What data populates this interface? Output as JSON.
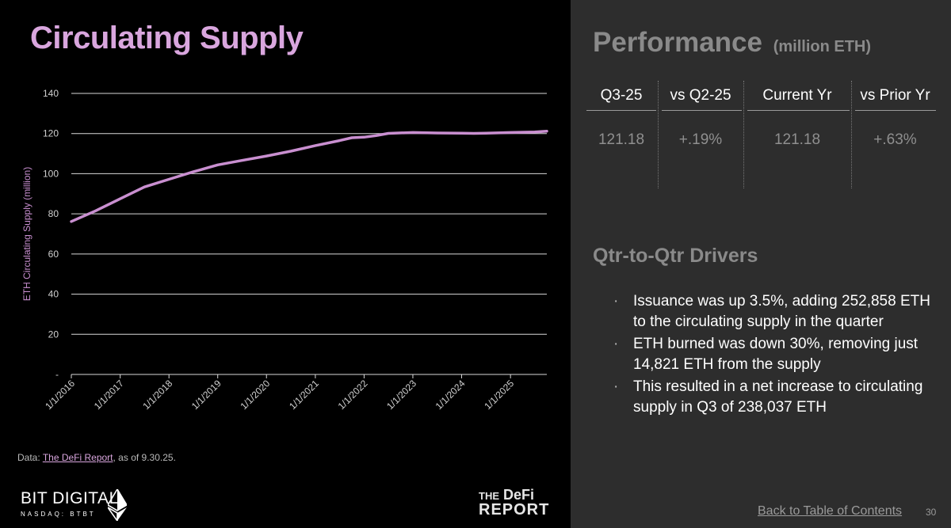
{
  "left": {
    "title": "Circulating Supply",
    "source": {
      "prefix": "Data: ",
      "link": "The DeFi Report",
      "suffix": ", as of 9.30.25."
    },
    "brand": {
      "name": "BIT DIGITAL",
      "sub": "NASDAQ: BTBT",
      "icon": "ethereum-diamond-icon"
    },
    "partner_logo": {
      "top_small": "THE",
      "top": "DeFi",
      "bottom": "REPORT"
    }
  },
  "chart_data": {
    "type": "line",
    "title": "",
    "xlabel": "",
    "ylabel": "ETH Circulating Supply (million)",
    "ylim": [
      0,
      140
    ],
    "yticks": [
      0,
      20,
      40,
      60,
      80,
      100,
      120,
      140
    ],
    "ytick_labels": [
      "-",
      "20",
      "40",
      "60",
      "80",
      "100",
      "120",
      "140"
    ],
    "x_start": "2016-01-01",
    "x_end": "2025-09-30",
    "xtick_labels": [
      "1/1/2016",
      "1/1/2017",
      "1/1/2018",
      "1/1/2019",
      "1/1/2020",
      "1/1/2021",
      "1/1/2022",
      "1/1/2023",
      "1/1/2024",
      "1/1/2025"
    ],
    "grid": true,
    "color": "#c98fd0",
    "series": [
      {
        "name": "",
        "x": [
          "2016-01-01",
          "2016-07-01",
          "2017-01-01",
          "2017-07-01",
          "2018-01-01",
          "2018-07-01",
          "2019-01-01",
          "2019-07-01",
          "2020-01-01",
          "2020-07-01",
          "2021-01-01",
          "2021-07-01",
          "2021-10-01",
          "2022-01-01",
          "2022-04-01",
          "2022-07-01",
          "2022-09-15",
          "2023-01-01",
          "2023-07-01",
          "2024-01-01",
          "2024-04-01",
          "2024-07-01",
          "2025-01-01",
          "2025-07-01",
          "2025-09-30"
        ],
        "y": [
          76.2,
          81.5,
          87.5,
          93.4,
          97.2,
          100.9,
          104.4,
          106.6,
          108.8,
          111.2,
          114.0,
          116.5,
          117.9,
          118.2,
          119.0,
          120.1,
          120.3,
          120.5,
          120.3,
          120.2,
          120.1,
          120.2,
          120.5,
          120.8,
          121.18
        ]
      }
    ]
  },
  "performance": {
    "title": "Performance",
    "unit": "(million ETH)",
    "columns": [
      {
        "header": "Q3-25",
        "value": "121.18"
      },
      {
        "header": "vs Q2-25",
        "value": "+.19%"
      },
      {
        "header": "Current Yr",
        "value": "121.18"
      },
      {
        "header": "vs Prior Yr",
        "value": "+.63%"
      }
    ]
  },
  "drivers": {
    "title": "Qtr-to-Qtr Drivers",
    "bullet": "·",
    "items": [
      "Issuance was up 3.5%, adding 252,858 ETH to the circulating supply in the quarter",
      "ETH burned was down 30%, removing just 14,821 ETH from the supply",
      "This resulted in a net increase to circulating supply in Q3 of 238,037 ETH"
    ]
  },
  "footer": {
    "back_link": "Back to Table of Contents",
    "page": "30"
  }
}
